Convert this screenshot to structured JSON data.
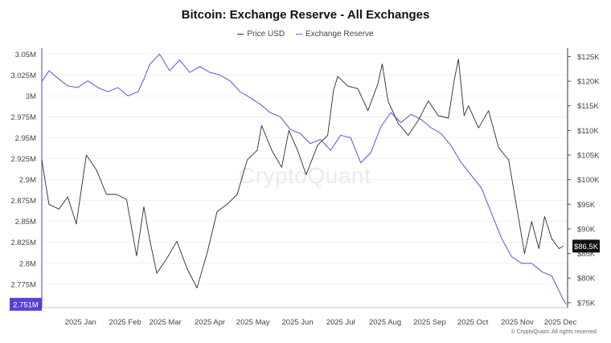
{
  "title": "Bitcoin: Exchange Reserve - All Exchanges",
  "legend": {
    "price_label": "Price USD",
    "reserve_label": "Exchange Reserve"
  },
  "watermark": "CryptoQuant",
  "copyright": "© CryptoQuant. All rights reserved",
  "colors": {
    "price": "#2b2b2b",
    "reserve": "#6f5ce6",
    "reserve_badge": "#5b3fd6",
    "price_badge": "#111111"
  },
  "chart_data": {
    "type": "line",
    "title": "Bitcoin: Exchange Reserve - All Exchanges",
    "x_tick_labels": [
      "2025 Jan",
      "2025 Feb",
      "2025 Mar",
      "2025 Apr",
      "2025 May",
      "2025 Jun",
      "2025 Jul",
      "2025 Aug",
      "2025 Sep",
      "2025 Oct",
      "2025 Nov",
      "2025 Dec"
    ],
    "y_left": {
      "ticks": [
        3.05,
        3.025,
        3.0,
        2.975,
        2.95,
        2.925,
        2.9,
        2.875,
        2.85,
        2.825,
        2.8,
        2.775
      ],
      "tick_labels": [
        "3.05M",
        "3.025M",
        "3M",
        "2.975M",
        "2.95M",
        "2.925M",
        "2.9M",
        "2.875M",
        "2.85M",
        "2.825M",
        "2.8M",
        "2.775M"
      ],
      "range": [
        2.747,
        3.057
      ],
      "current_label": "2.751M"
    },
    "y_right": {
      "ticks": [
        125000,
        120000,
        115000,
        110000,
        105000,
        100000,
        95000,
        90000,
        85000,
        80000,
        75000
      ],
      "tick_labels": [
        "$125K",
        "$120K",
        "$115K",
        "$110K",
        "$105K",
        "$100K",
        "$95K",
        "$90K",
        "$85K",
        "$80K",
        "$75K"
      ],
      "current_label": "$86.5K"
    },
    "grid": true,
    "series": [
      {
        "name": "Price USD",
        "axis": "right",
        "x": [
          "2024-12-20",
          "2024-12-25",
          "2025-01-01",
          "2025-01-07",
          "2025-01-13",
          "2025-01-20",
          "2025-01-27",
          "2025-02-03",
          "2025-02-10",
          "2025-02-17",
          "2025-02-24",
          "2025-03-01",
          "2025-03-05",
          "2025-03-10",
          "2025-03-17",
          "2025-03-24",
          "2025-03-31",
          "2025-04-07",
          "2025-04-14",
          "2025-04-21",
          "2025-04-28",
          "2025-05-05",
          "2025-05-12",
          "2025-05-19",
          "2025-05-22",
          "2025-05-29",
          "2025-06-05",
          "2025-06-10",
          "2025-06-16",
          "2025-06-22",
          "2025-06-30",
          "2025-07-07",
          "2025-07-11",
          "2025-07-14",
          "2025-07-21",
          "2025-07-28",
          "2025-08-04",
          "2025-08-11",
          "2025-08-14",
          "2025-08-18",
          "2025-08-25",
          "2025-09-01",
          "2025-09-08",
          "2025-09-15",
          "2025-09-22",
          "2025-09-29",
          "2025-10-03",
          "2025-10-06",
          "2025-10-10",
          "2025-10-13",
          "2025-10-20",
          "2025-10-27",
          "2025-11-03",
          "2025-11-10",
          "2025-11-17",
          "2025-11-21",
          "2025-11-26",
          "2025-12-01",
          "2025-12-05",
          "2025-12-10",
          "2025-12-15",
          "2025-12-18"
        ],
        "values": [
          104000,
          95000,
          94000,
          96500,
          91000,
          105000,
          102000,
          97000,
          97000,
          96000,
          84500,
          94500,
          88000,
          81000,
          84000,
          87500,
          82000,
          78000,
          85000,
          93500,
          95000,
          97000,
          104000,
          106000,
          111000,
          106000,
          102500,
          110000,
          106000,
          101000,
          107000,
          109000,
          118000,
          121000,
          119000,
          118500,
          114000,
          119500,
          123500,
          116000,
          111500,
          109000,
          112000,
          116000,
          113000,
          112500,
          120000,
          124500,
          113000,
          115000,
          110500,
          114000,
          106500,
          104000,
          92000,
          85000,
          91500,
          86000,
          92500,
          88000,
          86000,
          86500
        ]
      },
      {
        "name": "Exchange Reserve",
        "axis": "left",
        "x": [
          "2024-12-20",
          "2024-12-25",
          "2025-01-01",
          "2025-01-07",
          "2025-01-14",
          "2025-01-21",
          "2025-01-28",
          "2025-02-04",
          "2025-02-11",
          "2025-02-18",
          "2025-02-25",
          "2025-03-01",
          "2025-03-05",
          "2025-03-12",
          "2025-03-19",
          "2025-03-26",
          "2025-04-02",
          "2025-04-09",
          "2025-04-16",
          "2025-04-23",
          "2025-04-30",
          "2025-05-07",
          "2025-05-14",
          "2025-05-21",
          "2025-05-28",
          "2025-06-04",
          "2025-06-11",
          "2025-06-18",
          "2025-06-25",
          "2025-07-02",
          "2025-07-09",
          "2025-07-16",
          "2025-07-23",
          "2025-07-30",
          "2025-08-06",
          "2025-08-13",
          "2025-08-20",
          "2025-08-27",
          "2025-09-03",
          "2025-09-10",
          "2025-09-17",
          "2025-09-24",
          "2025-10-01",
          "2025-10-08",
          "2025-10-15",
          "2025-10-22",
          "2025-10-29",
          "2025-11-05",
          "2025-11-12",
          "2025-11-19",
          "2025-11-26",
          "2025-12-03",
          "2025-12-10",
          "2025-12-17",
          "2025-12-20"
        ],
        "values": [
          3.017,
          3.03,
          3.02,
          3.012,
          3.01,
          3.018,
          3.01,
          3.005,
          3.01,
          3.0,
          3.005,
          3.02,
          3.037,
          3.05,
          3.03,
          3.043,
          3.028,
          3.035,
          3.028,
          3.025,
          3.018,
          3.005,
          2.998,
          2.99,
          2.98,
          2.975,
          2.96,
          2.955,
          2.943,
          2.948,
          2.935,
          2.953,
          2.95,
          2.92,
          2.932,
          2.963,
          2.98,
          2.968,
          2.978,
          2.972,
          2.962,
          2.955,
          2.94,
          2.92,
          2.905,
          2.89,
          2.86,
          2.83,
          2.808,
          2.8,
          2.8,
          2.79,
          2.785,
          2.76,
          2.751
        ]
      }
    ]
  }
}
